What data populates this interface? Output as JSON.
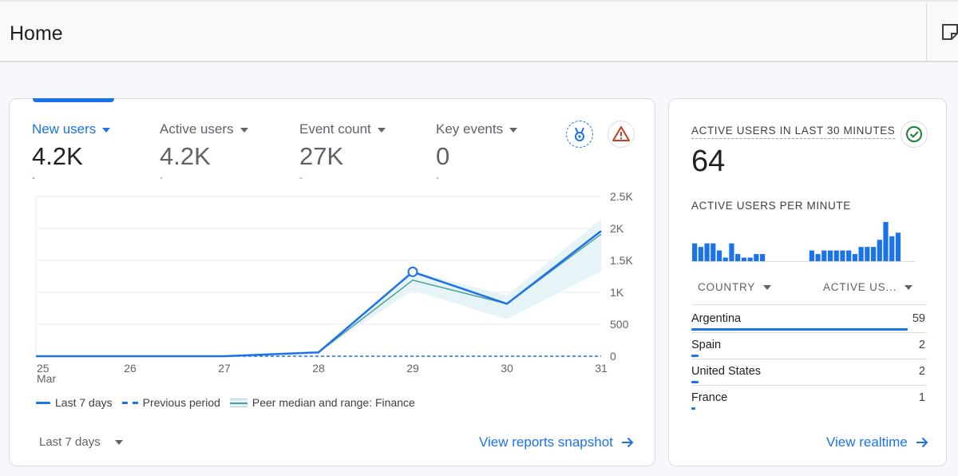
{
  "header": {
    "title": "Home"
  },
  "metrics": [
    {
      "label": "New users",
      "value": "4.2K",
      "delta": "-",
      "selected": true
    },
    {
      "label": "Active users",
      "value": "4.2K",
      "delta": "-"
    },
    {
      "label": "Event count",
      "value": "27K",
      "delta": "-"
    },
    {
      "label": "Key events",
      "value": "0",
      "delta": "-"
    }
  ],
  "icons": {
    "award": "award-icon",
    "warning": "warning-icon",
    "check": "check-circle-icon",
    "note": "note-icon",
    "arrow": "arrow-right-icon"
  },
  "chart_data": {
    "type": "line",
    "categories": [
      "25",
      "26",
      "27",
      "28",
      "29",
      "30",
      "31"
    ],
    "x_sublabel": "Mar",
    "series": [
      {
        "name": "Last 7 days",
        "values": [
          0,
          0,
          0,
          60,
          1320,
          820,
          1960
        ]
      },
      {
        "name": "Previous period",
        "values": [
          0,
          0,
          0,
          0,
          0,
          0,
          0
        ]
      },
      {
        "name": "Peer median and range: Finance",
        "values": [
          0,
          0,
          0,
          60,
          1190,
          820,
          1910
        ],
        "range_low": [
          0,
          0,
          0,
          60,
          1030,
          580,
          1330
        ],
        "range_high": [
          0,
          0,
          0,
          60,
          1330,
          950,
          2140
        ]
      }
    ],
    "y_ticks": [
      "2.5K",
      "2K",
      "1.5K",
      "1K",
      "500",
      "0"
    ],
    "ylim": [
      0,
      2500
    ],
    "highlight_index": 4,
    "legend": [
      "Last 7 days",
      "Previous period",
      "Peer median and range: Finance"
    ]
  },
  "footer": {
    "date_range": "Last 7 days",
    "snapshot_link": "View reports snapshot"
  },
  "realtime": {
    "title": "ACTIVE USERS IN LAST 30 MINUTES",
    "value": "64",
    "subtitle": "ACTIVE USERS PER MINUTE",
    "per_minute": [
      5,
      4,
      5,
      5,
      3,
      1,
      5,
      2,
      1,
      1,
      2,
      2,
      0,
      0,
      0,
      0,
      0,
      0,
      0,
      3,
      2,
      3,
      3,
      3,
      3,
      3,
      2,
      4,
      4,
      4,
      6,
      11,
      7,
      8,
      0,
      0
    ],
    "columns": {
      "country": "COUNTRY",
      "active": "ACTIVE US..."
    },
    "rows": [
      {
        "country": "Argentina",
        "value": "59",
        "share": 0.92
      },
      {
        "country": "Spain",
        "value": "2",
        "share": 0.03
      },
      {
        "country": "United States",
        "value": "2",
        "share": 0.03
      },
      {
        "country": "France",
        "value": "1",
        "share": 0.016
      }
    ],
    "link": "View realtime"
  }
}
